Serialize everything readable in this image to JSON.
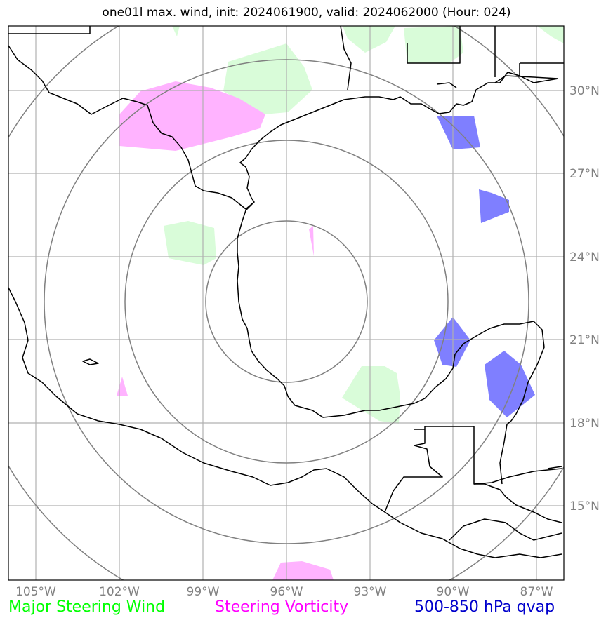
{
  "title": "one01l max. wind, init: 2024061900, valid: 2024062000 (Hour: 024)",
  "lon_ticks": [
    "105°W",
    "102°W",
    "99°W",
    "96°W",
    "93°W",
    "90°W",
    "87°W"
  ],
  "lat_ticks": [
    "30°N",
    "27°N",
    "24°N",
    "21°N",
    "18°N",
    "15°N"
  ],
  "legend": [
    {
      "label": "Major Steering Wind",
      "color": "#00ff00"
    },
    {
      "label": "Steering Vorticity",
      "color": "#ff00ff"
    },
    {
      "label": "500-850 hPa qvap",
      "color": "#0000cc"
    }
  ],
  "colors": {
    "wind_fill": "#d9fcd9",
    "vorticity_fill": "#ffb3ff",
    "qvap_fill": "#7f7fff",
    "grid": "#b0b0b0",
    "rings": "#808080"
  }
}
